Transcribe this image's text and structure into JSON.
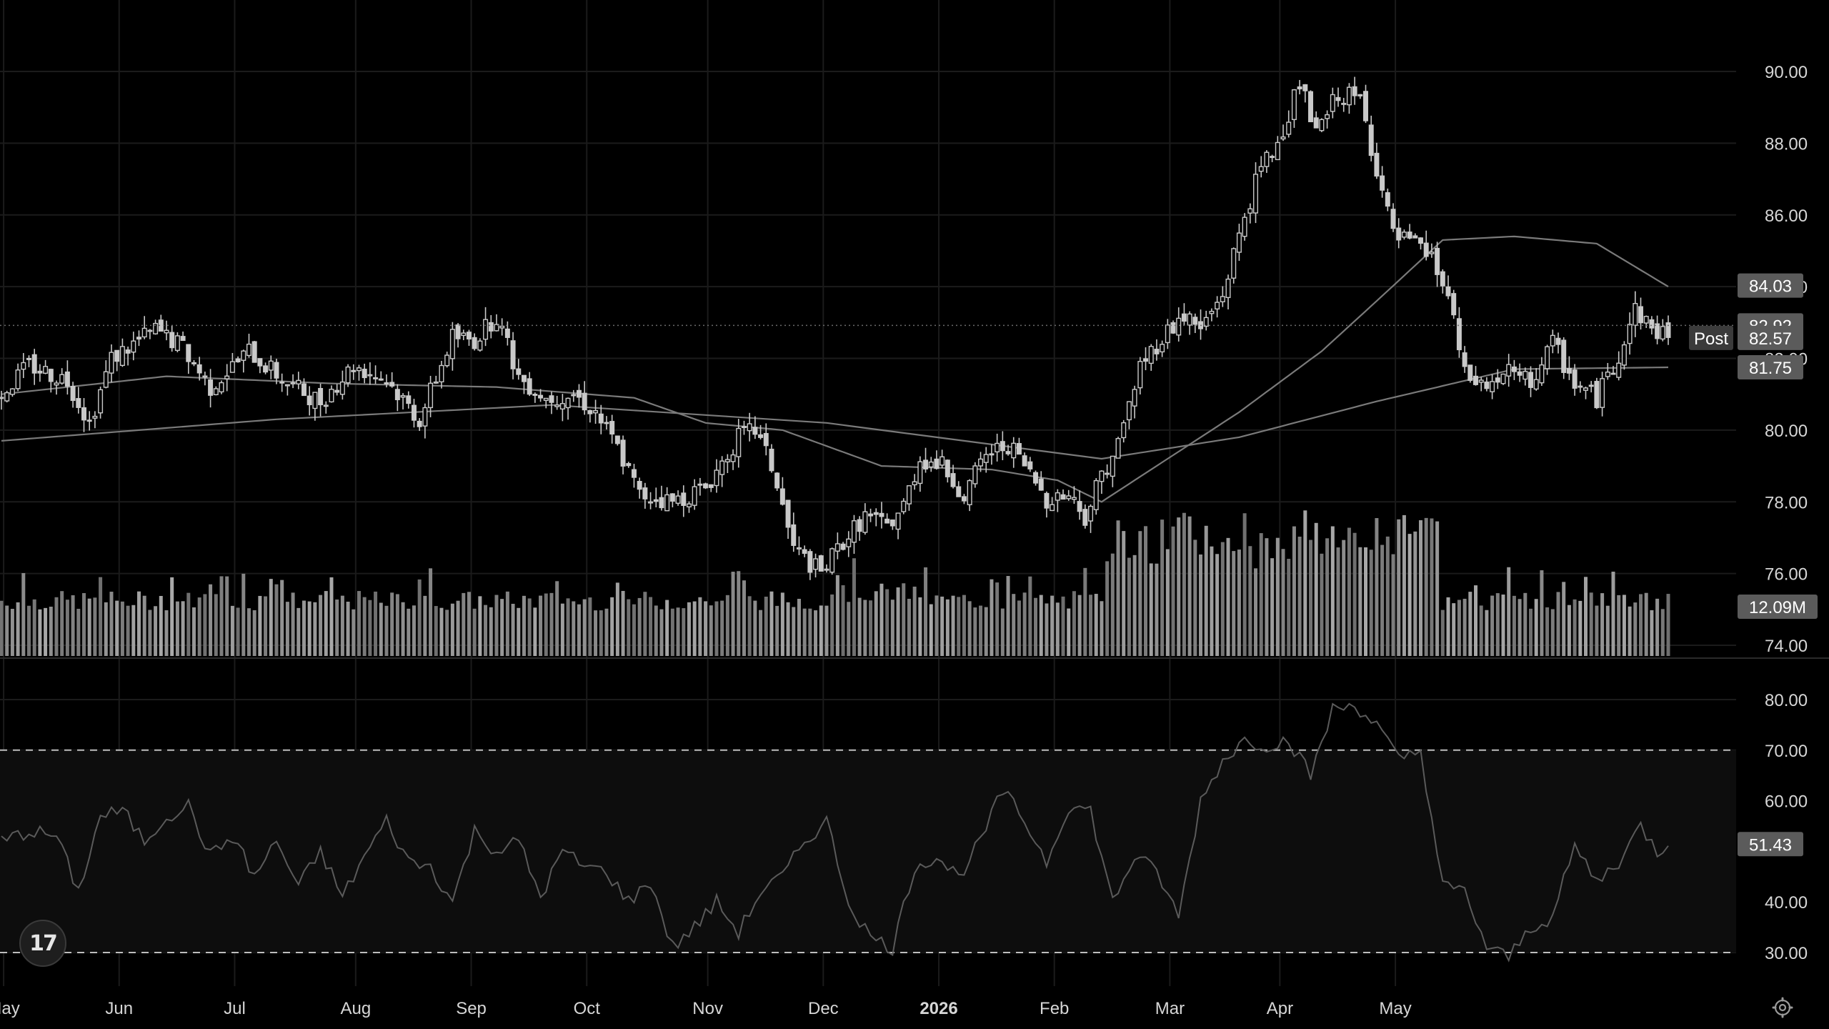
{
  "chart_data": [
    {
      "type": "candlestick",
      "x_ticks": [
        "May",
        "Jun",
        "Jul",
        "Aug",
        "Sep",
        "Oct",
        "Nov",
        "Dec",
        "2026",
        "Feb",
        "Mar",
        "Apr",
        "May"
      ],
      "y_ticks": [
        "90.00",
        "88.00",
        "86.00",
        "84.00",
        "82.00",
        "80.00",
        "78.00",
        "76.00",
        "74.00"
      ],
      "ylim": [
        74,
        90.5
      ],
      "grid": true,
      "price_keypoints": [
        [
          0,
          81.0
        ],
        [
          5,
          81.8
        ],
        [
          12,
          81.4
        ],
        [
          16,
          80.2
        ],
        [
          20,
          82.0
        ],
        [
          28,
          82.8
        ],
        [
          33,
          82.3
        ],
        [
          38,
          81.2
        ],
        [
          45,
          82.2
        ],
        [
          52,
          81.3
        ],
        [
          58,
          80.8
        ],
        [
          64,
          81.8
        ],
        [
          70,
          81.4
        ],
        [
          76,
          80.3
        ],
        [
          82,
          82.6
        ],
        [
          86,
          82.5
        ],
        [
          90,
          83.2
        ],
        [
          94,
          81.5
        ],
        [
          99,
          80.9
        ],
        [
          104,
          81.0
        ],
        [
          108,
          80.5
        ],
        [
          112,
          79.5
        ],
        [
          116,
          78.2
        ],
        [
          122,
          78.0
        ],
        [
          128,
          78.4
        ],
        [
          134,
          79.8
        ],
        [
          137,
          80.0
        ],
        [
          140,
          79.0
        ],
        [
          144,
          76.7
        ],
        [
          149,
          76.0
        ],
        [
          153,
          76.9
        ],
        [
          157,
          77.6
        ],
        [
          161,
          77.3
        ],
        [
          164,
          77.9
        ],
        [
          167,
          79.2
        ],
        [
          171,
          79.0
        ],
        [
          175,
          78.2
        ],
        [
          179,
          79.3
        ],
        [
          183,
          79.6
        ],
        [
          186,
          79.0
        ],
        [
          190,
          78.1
        ],
        [
          194,
          78.2
        ],
        [
          197,
          77.6
        ],
        [
          200,
          78.8
        ],
        [
          203,
          79.6
        ],
        [
          207,
          81.8
        ],
        [
          211,
          82.6
        ],
        [
          215,
          83.2
        ],
        [
          218,
          82.8
        ],
        [
          222,
          83.8
        ],
        [
          226,
          86.0
        ],
        [
          229,
          87.3
        ],
        [
          232,
          88.0
        ],
        [
          236,
          89.7
        ],
        [
          239,
          88.2
        ],
        [
          243,
          89.4
        ],
        [
          247,
          89.2
        ],
        [
          250,
          87.3
        ],
        [
          253,
          85.4
        ],
        [
          256,
          85.2
        ],
        [
          260,
          84.8
        ],
        [
          263,
          83.7
        ],
        [
          266,
          81.5
        ],
        [
          270,
          81.2
        ],
        [
          274,
          81.6
        ],
        [
          278,
          81.3
        ],
        [
          282,
          82.4
        ],
        [
          286,
          81.3
        ],
        [
          290,
          80.9
        ],
        [
          294,
          82.1
        ],
        [
          297,
          83.4
        ],
        [
          300,
          82.8
        ],
        [
          303,
          82.7
        ]
      ],
      "moving_averages": [
        {
          "points": [
            [
              0,
              81.0
            ],
            [
              30,
              81.5
            ],
            [
              60,
              81.3
            ],
            [
              90,
              81.2
            ],
            [
              115,
              80.9
            ],
            [
              128,
              80.2
            ],
            [
              142,
              80.0
            ],
            [
              160,
              79.0
            ],
            [
              180,
              78.9
            ],
            [
              192,
              78.6
            ],
            [
              200,
              78.0
            ],
            [
              212,
              79.2
            ],
            [
              225,
              80.5
            ],
            [
              240,
              82.2
            ],
            [
              250,
              83.6
            ],
            [
              262,
              85.3
            ],
            [
              275,
              85.4
            ],
            [
              290,
              85.2
            ],
            [
              303,
              84.0
            ]
          ]
        },
        {
          "points": [
            [
              0,
              79.7
            ],
            [
              50,
              80.3
            ],
            [
              100,
              80.7
            ],
            [
              150,
              80.2
            ],
            [
              200,
              79.2
            ],
            [
              225,
              79.8
            ],
            [
              250,
              80.8
            ],
            [
              275,
              81.7
            ],
            [
              303,
              81.75
            ]
          ]
        }
      ],
      "last_price": 82.92,
      "post_market": {
        "label": "Post",
        "value": "82.57"
      },
      "price_labels": [
        "84.03",
        "82.92",
        "82.57",
        "81.75"
      ]
    },
    {
      "type": "bar",
      "name": "volume",
      "last_value_label": "12.09M",
      "bars": 303
    },
    {
      "type": "line",
      "name": "rsi",
      "y_ticks": [
        "80.00",
        "70.00",
        "60.00",
        "50.00",
        "40.00",
        "30.00"
      ],
      "ylim": [
        27,
        82
      ],
      "bands": [
        30,
        70
      ],
      "last_value_label": "51.43",
      "keypoints": [
        [
          0,
          52
        ],
        [
          5,
          54
        ],
        [
          10,
          53
        ],
        [
          14,
          42
        ],
        [
          18,
          57
        ],
        [
          22,
          58
        ],
        [
          26,
          52
        ],
        [
          30,
          57
        ],
        [
          34,
          59
        ],
        [
          38,
          49
        ],
        [
          42,
          53
        ],
        [
          46,
          45
        ],
        [
          50,
          52
        ],
        [
          54,
          43
        ],
        [
          58,
          50
        ],
        [
          62,
          41
        ],
        [
          66,
          49
        ],
        [
          70,
          56
        ],
        [
          74,
          48
        ],
        [
          78,
          47
        ],
        [
          82,
          40
        ],
        [
          86,
          54
        ],
        [
          90,
          50
        ],
        [
          94,
          52
        ],
        [
          98,
          41
        ],
        [
          102,
          50
        ],
        [
          106,
          47
        ],
        [
          110,
          46
        ],
        [
          114,
          40
        ],
        [
          118,
          44
        ],
        [
          122,
          31
        ],
        [
          126,
          35
        ],
        [
          130,
          40
        ],
        [
          134,
          34
        ],
        [
          138,
          42
        ],
        [
          142,
          45
        ],
        [
          146,
          52
        ],
        [
          150,
          56
        ],
        [
          154,
          40
        ],
        [
          158,
          33
        ],
        [
          162,
          31
        ],
        [
          166,
          47
        ],
        [
          170,
          49
        ],
        [
          174,
          45
        ],
        [
          178,
          52
        ],
        [
          182,
          62
        ],
        [
          186,
          56
        ],
        [
          190,
          48
        ],
        [
          194,
          59
        ],
        [
          198,
          58
        ],
        [
          202,
          40
        ],
        [
          206,
          49
        ],
        [
          210,
          46
        ],
        [
          214,
          37
        ],
        [
          218,
          60
        ],
        [
          222,
          68
        ],
        [
          226,
          72
        ],
        [
          230,
          71
        ],
        [
          234,
          72
        ],
        [
          238,
          65
        ],
        [
          242,
          78
        ],
        [
          246,
          79
        ],
        [
          250,
          75
        ],
        [
          254,
          68
        ],
        [
          258,
          70
        ],
        [
          262,
          43
        ],
        [
          266,
          42
        ],
        [
          270,
          31
        ],
        [
          274,
          29
        ],
        [
          278,
          35
        ],
        [
          282,
          37
        ],
        [
          286,
          51
        ],
        [
          290,
          44
        ],
        [
          294,
          48
        ],
        [
          298,
          55
        ],
        [
          301,
          50
        ],
        [
          303,
          51.43
        ]
      ]
    }
  ],
  "branding": {
    "logo_text": "17"
  },
  "colors": {
    "background": "#000000",
    "grid": "#1b1b1b",
    "candle": "#c9c9c9",
    "ma_line": "#7a7a7a",
    "volume_bar": "#9a9a9a",
    "rsi_line": "#5a5a5a",
    "rsi_band": "#0d0d0d",
    "label_bg": "#5b5b5b",
    "text": "#d6d6d6"
  },
  "icons": {
    "settings": "gear-icon",
    "logo": "logo-icon"
  }
}
